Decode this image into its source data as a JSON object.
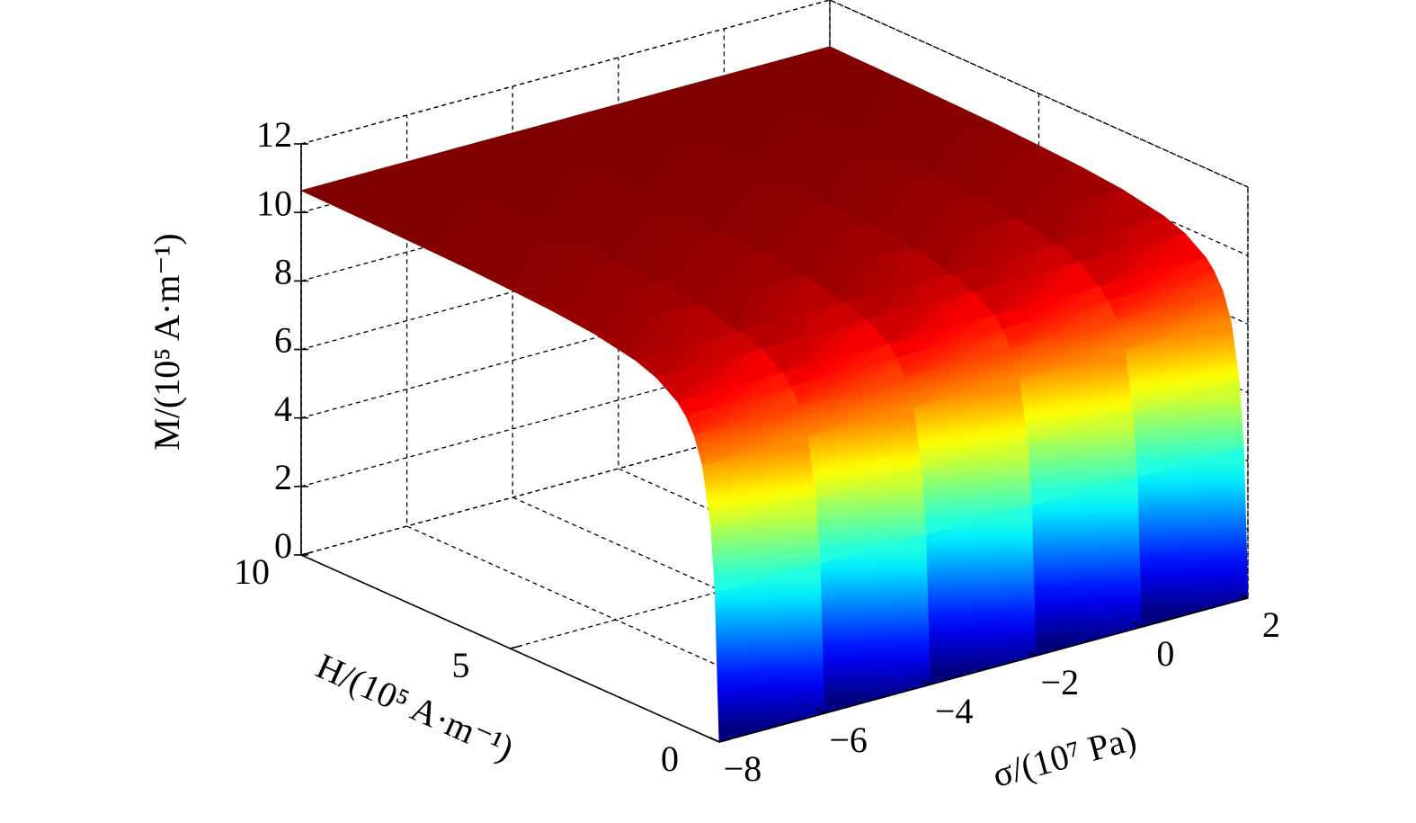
{
  "chart_data": {
    "type": "surface",
    "colormap": "jet",
    "grid": true,
    "xlabel": "σ/(10⁷ Pa)",
    "ylabel": "H/(10⁵ A·m⁻¹)",
    "zlabel": "M/(10⁵ A·m⁻¹)",
    "x": [
      -8,
      -6,
      -4,
      -2,
      0,
      2
    ],
    "y": [
      0,
      0.1,
      0.2,
      0.4,
      0.6,
      0.8,
      1,
      1.5,
      2,
      3,
      4,
      5,
      6,
      7,
      8,
      9,
      10
    ],
    "values": [
      [
        0,
        4.32,
        6.17,
        7.85,
        8.64,
        9.09,
        9.39,
        9.82,
        10.05,
        10.29,
        10.41,
        10.48,
        10.54,
        10.57,
        10.6,
        10.62,
        10.64
      ],
      [
        0,
        4.32,
        6.17,
        7.85,
        8.64,
        9.09,
        9.39,
        9.82,
        10.05,
        10.29,
        10.41,
        10.48,
        10.54,
        10.57,
        10.6,
        10.62,
        10.64
      ],
      [
        0,
        4.32,
        6.17,
        7.85,
        8.64,
        9.09,
        9.39,
        9.82,
        10.05,
        10.29,
        10.41,
        10.48,
        10.54,
        10.57,
        10.6,
        10.62,
        10.64
      ],
      [
        0,
        4.32,
        6.17,
        7.85,
        8.64,
        9.09,
        9.39,
        9.82,
        10.05,
        10.29,
        10.41,
        10.48,
        10.54,
        10.57,
        10.6,
        10.62,
        10.64
      ],
      [
        0,
        4.32,
        6.17,
        7.85,
        8.64,
        9.09,
        9.39,
        9.82,
        10.05,
        10.29,
        10.41,
        10.48,
        10.54,
        10.57,
        10.6,
        10.62,
        10.64
      ],
      [
        0,
        4.32,
        6.17,
        7.85,
        8.64,
        9.09,
        9.39,
        9.82,
        10.05,
        10.29,
        10.41,
        10.48,
        10.54,
        10.57,
        10.6,
        10.62,
        10.64
      ]
    ],
    "xlim": [
      -8,
      2
    ],
    "xticks": [
      {
        "value": -8,
        "label": "−8"
      },
      {
        "value": -6,
        "label": "−6"
      },
      {
        "value": -4,
        "label": "−4"
      },
      {
        "value": -2,
        "label": "−2"
      },
      0,
      2
    ],
    "ylim": [
      0,
      10
    ],
    "yticks": [
      0,
      5,
      10
    ],
    "zlim": [
      0,
      12
    ],
    "zticks": [
      0,
      2,
      4,
      6,
      8,
      10,
      12
    ]
  }
}
